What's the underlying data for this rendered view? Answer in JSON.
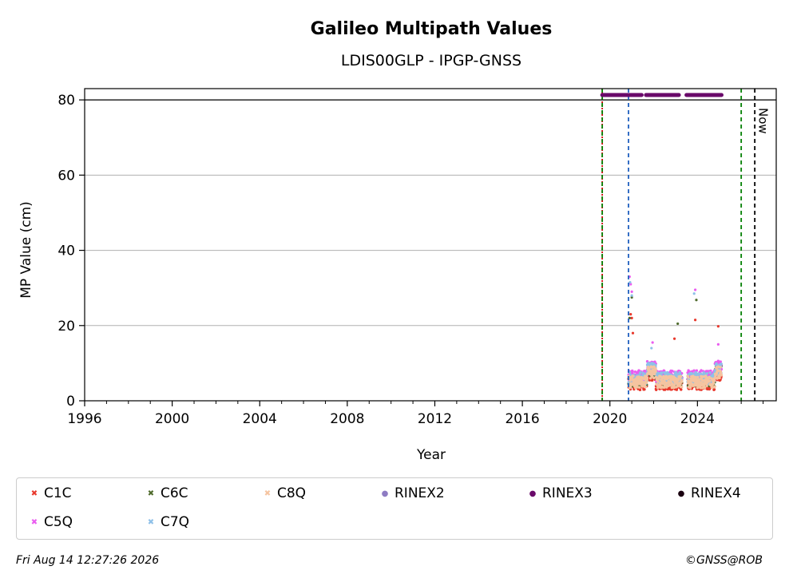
{
  "chart_data": {
    "type": "scatter",
    "title": "Galileo Multipath Values",
    "subtitle": "LDIS00GLP - IPGP-GNSS",
    "xlabel": "Year",
    "ylabel": "MP Value (cm)",
    "xlim": [
      1996,
      2027.6
    ],
    "ylim": [
      0,
      83
    ],
    "x_ticks": [
      "1996",
      "2000",
      "2004",
      "2008",
      "2012",
      "2016",
      "2020",
      "2024"
    ],
    "y_ticks": [
      "0",
      "20",
      "40",
      "60",
      "80"
    ],
    "grid": "horizontal",
    "threshold_line": 80,
    "vertical_lines": [
      {
        "x": 2019.65,
        "color": "#cc0000",
        "style": "dotted"
      },
      {
        "x": 2019.65,
        "color": "#008000",
        "style": "dashed"
      },
      {
        "x": 2020.85,
        "color": "#1f5fbf",
        "style": "dashed"
      },
      {
        "x": 2026.0,
        "color": "#008000",
        "style": "dashed"
      },
      {
        "x": 2026.62,
        "color": "#000000",
        "style": "dashed",
        "label": "Now"
      }
    ],
    "rinex3_segments": [
      [
        2019.65,
        2021.45
      ],
      [
        2021.65,
        2023.15
      ],
      [
        2023.5,
        2025.1
      ]
    ],
    "rinex3_y": 81.3,
    "data_range": [
      2020.85,
      2025.1
    ],
    "series": [
      {
        "name": "C1C",
        "color": "#e8382c",
        "marker": "x",
        "baseline": 4.5,
        "spikes": [
          [
            2020.95,
            23
          ],
          [
            2021.0,
            22
          ],
          [
            2021.05,
            18
          ],
          [
            2022.95,
            16.5
          ],
          [
            2023.9,
            21.5
          ],
          [
            2024.95,
            19.8
          ]
        ]
      },
      {
        "name": "C5Q",
        "color": "#ea5cf0",
        "marker": "x",
        "baseline": 6.5,
        "spikes": [
          [
            2020.9,
            33
          ],
          [
            2020.95,
            31
          ],
          [
            2021.0,
            29
          ],
          [
            2021.95,
            15.5
          ],
          [
            2023.9,
            29.5
          ],
          [
            2024.95,
            15
          ]
        ]
      },
      {
        "name": "C6C",
        "color": "#4f6b2c",
        "marker": "x",
        "baseline": 5.5,
        "spikes": [
          [
            2021.0,
            27.5
          ],
          [
            2023.1,
            20.5
          ],
          [
            2023.95,
            26.8
          ],
          [
            2020.9,
            22
          ]
        ]
      },
      {
        "name": "C7Q",
        "color": "#8ec0e8",
        "marker": "x",
        "baseline": 6.0,
        "spikes": [
          [
            2020.92,
            31.5
          ],
          [
            2021.0,
            28
          ],
          [
            2023.85,
            28.5
          ],
          [
            2021.9,
            14
          ]
        ]
      },
      {
        "name": "C8Q",
        "color": "#f5c4a0",
        "marker": "x",
        "baseline": 5.0,
        "spikes": []
      },
      {
        "name": "RINEX2",
        "color": "#8e7cc3",
        "marker": "o",
        "baseline": null,
        "spikes": []
      },
      {
        "name": "RINEX3",
        "color": "#6a0a6a",
        "marker": "o",
        "baseline": null,
        "spikes": []
      },
      {
        "name": "RINEX4",
        "color": "#1a0010",
        "marker": "o",
        "baseline": null,
        "spikes": []
      }
    ]
  },
  "now_label": "Now",
  "footer": {
    "timestamp": "Fri Aug 14 12:27:26 2026",
    "credit": "©GNSS@ROB"
  },
  "legend": {
    "items": [
      {
        "label": "C1C",
        "color": "#e8382c",
        "marker": "x"
      },
      {
        "label": "C6C",
        "color": "#4f6b2c",
        "marker": "x"
      },
      {
        "label": "C8Q",
        "color": "#f5c4a0",
        "marker": "x"
      },
      {
        "label": "RINEX2",
        "color": "#8e7cc3",
        "marker": "o"
      },
      {
        "label": "RINEX3",
        "color": "#6a0a6a",
        "marker": "o"
      },
      {
        "label": "RINEX4",
        "color": "#1a0010",
        "marker": "o"
      },
      {
        "label": "C5Q",
        "color": "#ea5cf0",
        "marker": "x"
      },
      {
        "label": "C7Q",
        "color": "#8ec0e8",
        "marker": "x"
      }
    ]
  }
}
